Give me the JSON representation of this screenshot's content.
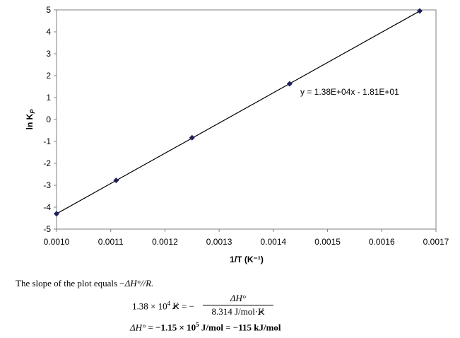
{
  "chart_data": {
    "type": "scatter",
    "x": [
      0.001,
      0.00111,
      0.00125,
      0.00143,
      0.00167
    ],
    "y": [
      -4.3,
      -2.78,
      -0.83,
      1.63,
      4.95
    ],
    "xlim": [
      0.001,
      0.0017
    ],
    "ylim": [
      -5,
      5
    ],
    "x_ticks": [
      "0.0010",
      "0.0011",
      "0.0012",
      "0.0013",
      "0.0014",
      "0.0015",
      "0.0016",
      "0.0017"
    ],
    "y_ticks": [
      "5",
      "4",
      "3",
      "2",
      "1",
      "0",
      "-1",
      "-2",
      "-3",
      "-4",
      "-5"
    ],
    "xlabel": "1/T (K⁻¹)",
    "ylabel_main": "ln K",
    "ylabel_sub": "P",
    "trendline": {
      "slope": 13800,
      "intercept": -18.1,
      "label": "y = 1.38E+04x - 1.81E+01"
    },
    "grid": false,
    "marker_color": "#1f1f5e",
    "line_color": "#000000"
  },
  "notes": {
    "line1_pre": "The slope of the plot equals −",
    "line1_dh": "ΔH°",
    "line1_post": "/R.",
    "eq1_lhs_num": "1.38 × 10",
    "eq1_lhs_exp": "4",
    "eq1_lhs_unit": "K",
    "eq1_eq": " = −",
    "eq1_frac_num": "ΔH°",
    "eq1_frac_den_pre": "8.314 J/mol·",
    "eq1_frac_den_unit": "K",
    "eq2_lhs": "ΔH°",
    "eq2_eq": " = ",
    "eq2_val": "−1.15 × 10",
    "eq2_exp": "5",
    "eq2_unit": " J/mol",
    "eq2_eq2": " = ",
    "eq2_val2": "−115 kJ/mol"
  }
}
